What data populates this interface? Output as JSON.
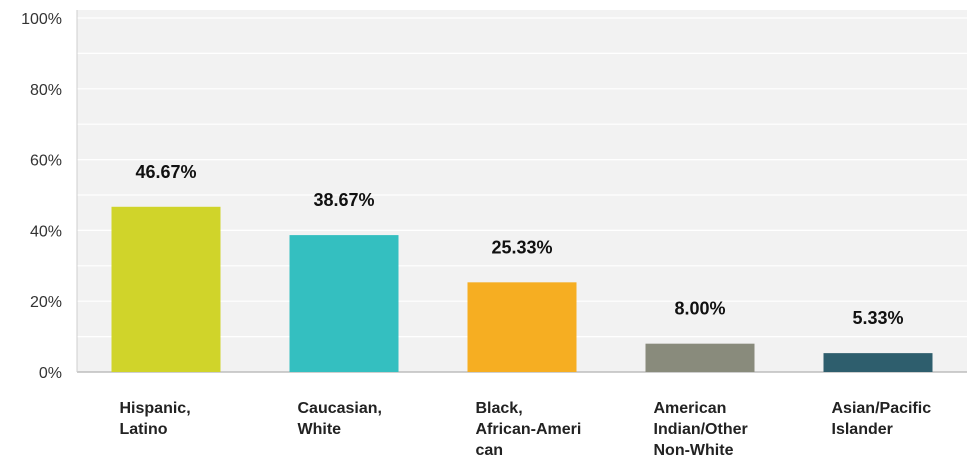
{
  "chart_data": {
    "type": "bar",
    "categories": [
      [
        "Hispanic,",
        "Latino"
      ],
      [
        "Caucasian,",
        "White"
      ],
      [
        "Black,",
        "African-Ameri",
        "can"
      ],
      [
        "American",
        "Indian/Other",
        "Non-White"
      ],
      [
        "Asian/Pacific",
        "Islander"
      ]
    ],
    "values": [
      46.67,
      38.67,
      25.33,
      8.0,
      5.33
    ],
    "data_labels": [
      "46.67%",
      "38.67%",
      "25.33%",
      "8.00%",
      "5.33%"
    ],
    "colors": [
      "#d0d42a",
      "#34bfc0",
      "#f6ae22",
      "#898b7c",
      "#2e5e6d"
    ],
    "yticks": [
      "0%",
      "20%",
      "40%",
      "60%",
      "80%",
      "100%"
    ],
    "ylim": [
      0,
      100
    ],
    "grid": true,
    "title": "",
    "xlabel": "",
    "ylabel": ""
  }
}
